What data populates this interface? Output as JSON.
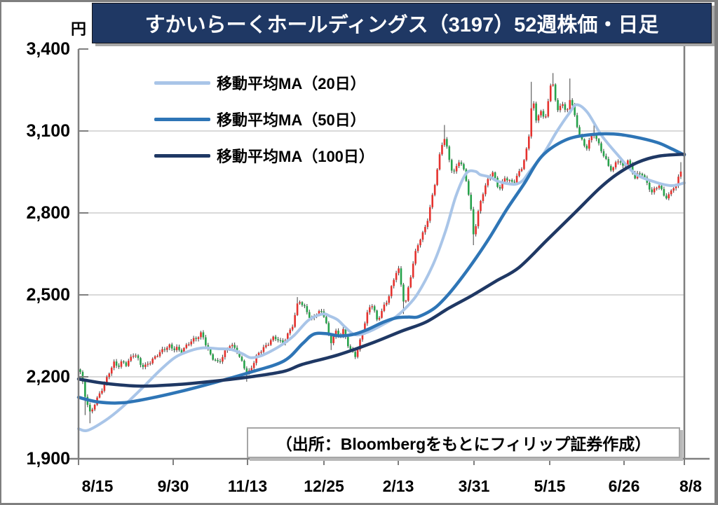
{
  "title": "すかいらーくホールディングス（3197）52週株価・日足",
  "y_axis": {
    "unit": "円",
    "tick_labels": [
      "3,400",
      "3,100",
      "2,800",
      "2,500",
      "2,200",
      "1,900"
    ]
  },
  "x_axis": {
    "tick_labels": [
      "8/15",
      "9/30",
      "11/13",
      "12/25",
      "2/13",
      "3/31",
      "5/15",
      "6/26",
      "8/8"
    ]
  },
  "legend": [
    {
      "label": "移動平均MA（20日）",
      "color": "#a9c5e8"
    },
    {
      "label": "移動平均MA（50日）",
      "color": "#2e75b6"
    },
    {
      "label": "移動平均MA（100日）",
      "color": "#1f3864"
    }
  ],
  "source": "（出所：Bloombergをもとにフィリップ証券作成）",
  "brand": {
    "title_bar_bg": "#1f3864",
    "title_bar_text": "#ffffff"
  },
  "chart_data": {
    "type": "candlestick",
    "title": "すかいらーくホールディングス（3197）52週株価・日足",
    "ylabel": "円",
    "ylim": [
      1900,
      3400
    ],
    "yticks": [
      3400,
      3100,
      2800,
      2500,
      2200,
      1900
    ],
    "gridline_levels": [
      3100,
      2800,
      2500,
      2200
    ],
    "xticklabels": [
      "8/15",
      "9/30",
      "11/13",
      "12/25",
      "2/13",
      "3/31",
      "5/15",
      "6/26",
      "8/8"
    ],
    "legend_position": "top-left-inside",
    "grid": true,
    "n_candles": 250,
    "noise_amp": 6,
    "colors": {
      "up": "#e5322e",
      "down": "#27a24b",
      "wick": "#404040",
      "grid": "#d9d9d9",
      "axis": "#7f7f7f"
    },
    "ma_widths": [
      4,
      4.5,
      4.5
    ],
    "close_waypoints": [
      [
        0.0,
        2215
      ],
      [
        0.004,
        2175
      ],
      [
        0.008,
        2130
      ],
      [
        0.013,
        2095
      ],
      [
        0.017,
        2062
      ],
      [
        0.022,
        2098
      ],
      [
        0.028,
        2122
      ],
      [
        0.035,
        2150
      ],
      [
        0.042,
        2180
      ],
      [
        0.049,
        2218
      ],
      [
        0.056,
        2248
      ],
      [
        0.063,
        2238
      ],
      [
        0.07,
        2258
      ],
      [
        0.077,
        2248
      ],
      [
        0.083,
        2268
      ],
      [
        0.09,
        2288
      ],
      [
        0.096,
        2262
      ],
      [
        0.101,
        2242
      ],
      [
        0.107,
        2232
      ],
      [
        0.113,
        2248
      ],
      [
        0.12,
        2262
      ],
      [
        0.127,
        2282
      ],
      [
        0.134,
        2295
      ],
      [
        0.141,
        2305
      ],
      [
        0.148,
        2312
      ],
      [
        0.155,
        2298
      ],
      [
        0.161,
        2302
      ],
      [
        0.168,
        2288
      ],
      [
        0.174,
        2308
      ],
      [
        0.181,
        2328
      ],
      [
        0.188,
        2338
      ],
      [
        0.195,
        2346
      ],
      [
        0.202,
        2358
      ],
      [
        0.207,
        2330
      ],
      [
        0.212,
        2298
      ],
      [
        0.218,
        2272
      ],
      [
        0.224,
        2262
      ],
      [
        0.23,
        2252
      ],
      [
        0.237,
        2278
      ],
      [
        0.243,
        2302
      ],
      [
        0.249,
        2318
      ],
      [
        0.255,
        2308
      ],
      [
        0.261,
        2292
      ],
      [
        0.266,
        2262
      ],
      [
        0.271,
        2245
      ],
      [
        0.275,
        2225
      ],
      [
        0.279,
        2208
      ],
      [
        0.284,
        2232
      ],
      [
        0.29,
        2262
      ],
      [
        0.296,
        2288
      ],
      [
        0.303,
        2302
      ],
      [
        0.31,
        2312
      ],
      [
        0.317,
        2330
      ],
      [
        0.323,
        2342
      ],
      [
        0.33,
        2335
      ],
      [
        0.336,
        2322
      ],
      [
        0.343,
        2348
      ],
      [
        0.349,
        2372
      ],
      [
        0.355,
        2398
      ],
      [
        0.36,
        2452
      ],
      [
        0.364,
        2482
      ],
      [
        0.369,
        2462
      ],
      [
        0.374,
        2448
      ],
      [
        0.379,
        2432
      ],
      [
        0.384,
        2405
      ],
      [
        0.389,
        2422
      ],
      [
        0.394,
        2438
      ],
      [
        0.399,
        2442
      ],
      [
        0.404,
        2436
      ],
      [
        0.408,
        2415
      ],
      [
        0.412,
        2372
      ],
      [
        0.416,
        2315
      ],
      [
        0.42,
        2340
      ],
      [
        0.424,
        2358
      ],
      [
        0.428,
        2362
      ],
      [
        0.432,
        2334
      ],
      [
        0.436,
        2380
      ],
      [
        0.44,
        2356
      ],
      [
        0.444,
        2330
      ],
      [
        0.448,
        2308
      ],
      [
        0.453,
        2292
      ],
      [
        0.458,
        2280
      ],
      [
        0.464,
        2315
      ],
      [
        0.47,
        2365
      ],
      [
        0.476,
        2415
      ],
      [
        0.481,
        2448
      ],
      [
        0.486,
        2462
      ],
      [
        0.49,
        2438
      ],
      [
        0.494,
        2406
      ],
      [
        0.499,
        2428
      ],
      [
        0.504,
        2455
      ],
      [
        0.509,
        2472
      ],
      [
        0.514,
        2500
      ],
      [
        0.52,
        2540
      ],
      [
        0.525,
        2575
      ],
      [
        0.529,
        2605
      ],
      [
        0.533,
        2550
      ],
      [
        0.537,
        2486
      ],
      [
        0.541,
        2462
      ],
      [
        0.546,
        2520
      ],
      [
        0.551,
        2580
      ],
      [
        0.556,
        2640
      ],
      [
        0.561,
        2680
      ],
      [
        0.566,
        2708
      ],
      [
        0.572,
        2732
      ],
      [
        0.578,
        2772
      ],
      [
        0.584,
        2832
      ],
      [
        0.59,
        2900
      ],
      [
        0.597,
        2992
      ],
      [
        0.602,
        3050
      ],
      [
        0.606,
        3080
      ],
      [
        0.61,
        3045
      ],
      [
        0.614,
        3002
      ],
      [
        0.618,
        2965
      ],
      [
        0.623,
        2948
      ],
      [
        0.627,
        2972
      ],
      [
        0.631,
        2992
      ],
      [
        0.636,
        2968
      ],
      [
        0.64,
        2942
      ],
      [
        0.644,
        2905
      ],
      [
        0.648,
        2845
      ],
      [
        0.652,
        2785
      ],
      [
        0.655,
        2715
      ],
      [
        0.659,
        2762
      ],
      [
        0.664,
        2820
      ],
      [
        0.669,
        2868
      ],
      [
        0.675,
        2902
      ],
      [
        0.681,
        2932
      ],
      [
        0.686,
        2952
      ],
      [
        0.691,
        2918
      ],
      [
        0.697,
        2882
      ],
      [
        0.703,
        2908
      ],
      [
        0.708,
        2932
      ],
      [
        0.714,
        2920
      ],
      [
        0.721,
        2912
      ],
      [
        0.727,
        2938
      ],
      [
        0.734,
        2958
      ],
      [
        0.74,
        3002
      ],
      [
        0.746,
        3052
      ],
      [
        0.753,
        3238
      ],
      [
        0.758,
        3128
      ],
      [
        0.762,
        3158
      ],
      [
        0.766,
        3180
      ],
      [
        0.77,
        3152
      ],
      [
        0.774,
        3148
      ],
      [
        0.778,
        3198
      ],
      [
        0.782,
        3252
      ],
      [
        0.786,
        3288
      ],
      [
        0.79,
        3238
      ],
      [
        0.794,
        3162
      ],
      [
        0.799,
        3188
      ],
      [
        0.803,
        3202
      ],
      [
        0.807,
        3172
      ],
      [
        0.81,
        3162
      ],
      [
        0.813,
        3192
      ],
      [
        0.816,
        3228
      ],
      [
        0.82,
        3188
      ],
      [
        0.824,
        3148
      ],
      [
        0.829,
        3108
      ],
      [
        0.833,
        3078
      ],
      [
        0.838,
        3052
      ],
      [
        0.843,
        3038
      ],
      [
        0.849,
        3068
      ],
      [
        0.855,
        3090
      ],
      [
        0.861,
        3058
      ],
      [
        0.866,
        3038
      ],
      [
        0.872,
        3008
      ],
      [
        0.877,
        2988
      ],
      [
        0.882,
        2968
      ],
      [
        0.886,
        2955
      ],
      [
        0.89,
        2978
      ],
      [
        0.894,
        3000
      ],
      [
        0.899,
        2982
      ],
      [
        0.903,
        2965
      ],
      [
        0.908,
        2978
      ],
      [
        0.912,
        2990
      ],
      [
        0.918,
        2958
      ],
      [
        0.923,
        2928
      ],
      [
        0.929,
        2945
      ],
      [
        0.935,
        2950
      ],
      [
        0.941,
        2922
      ],
      [
        0.947,
        2896
      ],
      [
        0.952,
        2872
      ],
      [
        0.958,
        2888
      ],
      [
        0.963,
        2902
      ],
      [
        0.968,
        2878
      ],
      [
        0.973,
        2860
      ],
      [
        0.978,
        2856
      ],
      [
        0.983,
        2878
      ],
      [
        0.987,
        2902
      ],
      [
        0.991,
        2892
      ],
      [
        0.994,
        2918
      ],
      [
        1.0,
        2958
      ]
    ],
    "wick_spikes": [
      {
        "t": 0.008,
        "low": 2060
      },
      {
        "t": 0.017,
        "low": 2030
      },
      {
        "t": 0.279,
        "low": 2182
      },
      {
        "t": 0.362,
        "high": 2492
      },
      {
        "t": 0.416,
        "low": 2298
      },
      {
        "t": 0.458,
        "low": 2265
      },
      {
        "t": 0.54,
        "low": 2430
      },
      {
        "t": 0.606,
        "high": 3122
      },
      {
        "t": 0.655,
        "low": 2682
      },
      {
        "t": 0.753,
        "high": 3280
      },
      {
        "t": 0.786,
        "high": 3312
      },
      {
        "t": 0.816,
        "high": 3292
      },
      {
        "t": 0.855,
        "high": 3132
      },
      {
        "t": 0.978,
        "low": 2846
      },
      {
        "t": 1.0,
        "high": 2986
      }
    ],
    "series": [
      {
        "name": "移動平均MA（20日）",
        "color": "#a9c5e8",
        "points": [
          [
            0,
            2010
          ],
          [
            0.015,
            2004
          ],
          [
            0.044,
            2040
          ],
          [
            0.07,
            2085
          ],
          [
            0.102,
            2152
          ],
          [
            0.135,
            2225
          ],
          [
            0.16,
            2272
          ],
          [
            0.185,
            2296
          ],
          [
            0.206,
            2306
          ],
          [
            0.23,
            2303
          ],
          [
            0.252,
            2300
          ],
          [
            0.27,
            2285
          ],
          [
            0.284,
            2270
          ],
          [
            0.3,
            2276
          ],
          [
            0.316,
            2292
          ],
          [
            0.336,
            2318
          ],
          [
            0.356,
            2352
          ],
          [
            0.38,
            2408
          ],
          [
            0.403,
            2430
          ],
          [
            0.415,
            2422
          ],
          [
            0.428,
            2408
          ],
          [
            0.44,
            2382
          ],
          [
            0.455,
            2355
          ],
          [
            0.47,
            2358
          ],
          [
            0.486,
            2372
          ],
          [
            0.503,
            2392
          ],
          [
            0.521,
            2415
          ],
          [
            0.54,
            2452
          ],
          [
            0.56,
            2505
          ],
          [
            0.586,
            2615
          ],
          [
            0.606,
            2735
          ],
          [
            0.623,
            2862
          ],
          [
            0.64,
            2945
          ],
          [
            0.655,
            2952
          ],
          [
            0.663,
            2940
          ],
          [
            0.678,
            2932
          ],
          [
            0.692,
            2916
          ],
          [
            0.706,
            2908
          ],
          [
            0.721,
            2905
          ],
          [
            0.733,
            2918
          ],
          [
            0.744,
            2950
          ],
          [
            0.767,
            3015
          ],
          [
            0.79,
            3100
          ],
          [
            0.81,
            3165
          ],
          [
            0.822,
            3196
          ],
          [
            0.84,
            3168
          ],
          [
            0.863,
            3085
          ],
          [
            0.889,
            3015
          ],
          [
            0.918,
            2945
          ],
          [
            0.949,
            2915
          ],
          [
            0.978,
            2900
          ],
          [
            1,
            2910
          ]
        ]
      },
      {
        "name": "移動平均MA（50日）",
        "color": "#2e75b6",
        "points": [
          [
            0,
            2125
          ],
          [
            0.032,
            2108
          ],
          [
            0.073,
            2105
          ],
          [
            0.119,
            2122
          ],
          [
            0.171,
            2148
          ],
          [
            0.229,
            2182
          ],
          [
            0.284,
            2217
          ],
          [
            0.339,
            2258
          ],
          [
            0.37,
            2322
          ],
          [
            0.388,
            2356
          ],
          [
            0.409,
            2358
          ],
          [
            0.43,
            2350
          ],
          [
            0.455,
            2356
          ],
          [
            0.478,
            2374
          ],
          [
            0.503,
            2400
          ],
          [
            0.525,
            2416
          ],
          [
            0.545,
            2419
          ],
          [
            0.561,
            2420
          ],
          [
            0.588,
            2452
          ],
          [
            0.611,
            2503
          ],
          [
            0.634,
            2567
          ],
          [
            0.657,
            2638
          ],
          [
            0.68,
            2715
          ],
          [
            0.706,
            2810
          ],
          [
            0.735,
            2905
          ],
          [
            0.765,
            3008
          ],
          [
            0.804,
            3067
          ],
          [
            0.843,
            3086
          ],
          [
            0.883,
            3089
          ],
          [
            0.918,
            3078
          ],
          [
            0.955,
            3058
          ],
          [
            0.976,
            3038
          ],
          [
            1,
            3012
          ]
        ]
      },
      {
        "name": "移動平均MA（100日）",
        "color": "#1f3864",
        "points": [
          [
            0,
            2192
          ],
          [
            0.044,
            2176
          ],
          [
            0.102,
            2166
          ],
          [
            0.165,
            2172
          ],
          [
            0.223,
            2184
          ],
          [
            0.284,
            2200
          ],
          [
            0.339,
            2220
          ],
          [
            0.37,
            2246
          ],
          [
            0.428,
            2280
          ],
          [
            0.486,
            2325
          ],
          [
            0.533,
            2367
          ],
          [
            0.573,
            2400
          ],
          [
            0.611,
            2451
          ],
          [
            0.649,
            2497
          ],
          [
            0.688,
            2549
          ],
          [
            0.727,
            2600
          ],
          [
            0.773,
            2700
          ],
          [
            0.819,
            2800
          ],
          [
            0.86,
            2890
          ],
          [
            0.889,
            2942
          ],
          [
            0.923,
            2985
          ],
          [
            0.958,
            3008
          ],
          [
            1,
            3015
          ]
        ]
      }
    ]
  }
}
